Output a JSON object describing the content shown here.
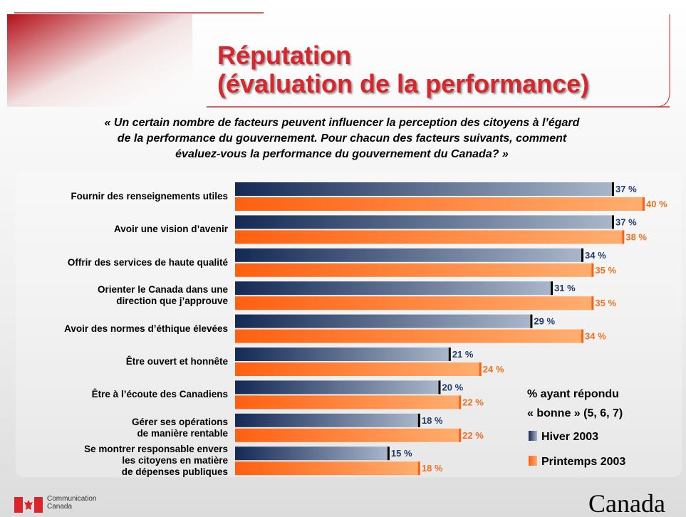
{
  "header": {
    "title": "Réputation\n(évaluation de la performance)",
    "question": "« Un certain nombre de facteurs peuvent influencer la perception des citoyens à l’égard\nde la performance du gouvernement. Pour chacun des facteurs suivants, comment\névaluez-vous la performance du gouvernement du Canada? »"
  },
  "chart_data": {
    "type": "bar",
    "orientation": "horizontal",
    "categories": [
      "Fournir des renseignements utiles",
      "Avoir une vision d’avenir",
      "Offrir des services de haute qualité",
      "Orienter le Canada dans une\ndirection que j’approuve",
      "Avoir des normes d’éthique élevées",
      "Être ouvert et honnête",
      "Être à l’écoute des Canadiens",
      "Gérer ses opérations\nde manière rentable",
      "Se montrer responsable envers\nles citoyens en matière\nde dépenses publiques"
    ],
    "series": [
      {
        "name": "Hiver 2003",
        "color": "#142a55",
        "values": [
          37,
          37,
          34,
          31,
          29,
          21,
          20,
          18,
          15
        ],
        "value_labels": [
          "37 %",
          "37 %",
          "34 %",
          "31 %",
          "29 %",
          "21 %",
          "20 %",
          "18 %",
          "15 %"
        ]
      },
      {
        "name": "Printemps 2003",
        "color": "#ff6010",
        "values": [
          40,
          38,
          35,
          35,
          34,
          24,
          22,
          22,
          18
        ],
        "value_labels": [
          "40 %",
          "38 %",
          "35 %",
          "35 %",
          "34 %",
          "24 %",
          "22 %",
          "22 %",
          "18 %"
        ]
      }
    ],
    "legend_title": "% ayant répondu\n« bonne » (5, 6, 7)",
    "xlim": [
      0,
      40
    ]
  },
  "footer": {
    "department": "Communication\nCanada",
    "wordmark": "Canada"
  }
}
